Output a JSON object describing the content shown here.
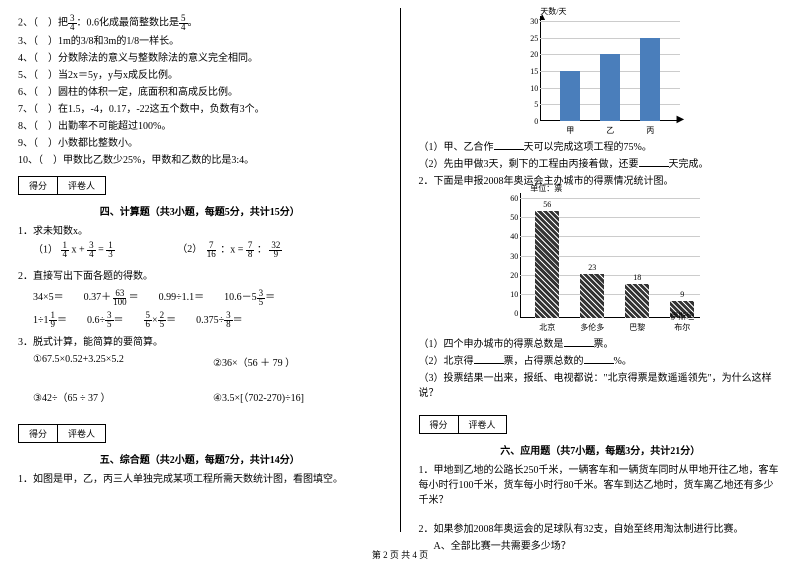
{
  "left": {
    "judge": [
      {
        "n": "2、",
        "text": "（　）把",
        "f1n": "3",
        "f1d": "4",
        "mid": "：0.6化成最简整数比是",
        "f2n": "5",
        "f2d": "4",
        "end": "。"
      },
      {
        "n": "3、",
        "text": "（　）1m的3/8和3m的1/8一样长。"
      },
      {
        "n": "4、",
        "text": "（　）分数除法的意义与整数除法的意义完全相同。"
      },
      {
        "n": "5、",
        "text": "（　）当2x＝5y，y与x成反比例。"
      },
      {
        "n": "6、",
        "text": "（　）圆柱的体积一定，底面积和高成反比例。"
      },
      {
        "n": "7、",
        "text": "（　）在1.5，-4，0.17，-22这五个数中，负数有3个。"
      },
      {
        "n": "8、",
        "text": "（　）出勤率不可能超过100%。"
      },
      {
        "n": "9、",
        "text": "（　）小数都比整数小。"
      },
      {
        "n": "10、",
        "text": "（　）甲数比乙数少25%，甲数和乙数的比是3:4。"
      }
    ],
    "scorebox": {
      "a": "得分",
      "b": "评卷人"
    },
    "sec4": {
      "title": "四、计算题（共3小题，每题5分，共计15分）",
      "q1": "1．求未知数x。"
    },
    "eq1": {
      "pre": "（1）",
      "f1n": "1",
      "f1d": "4",
      "op1": "x +",
      "f2n": "3",
      "f2d": "4",
      "op2": "=",
      "f3n": "1",
      "f3d": "3"
    },
    "eq2": {
      "pre": "（2）",
      "f1n": "7",
      "f1d": "16",
      "op1": "：x =",
      "f2n": "7",
      "f2d": "8",
      "op2": "：",
      "f3n": "32",
      "f3d": "9"
    },
    "q2": "2．直接写出下面各题的得数。",
    "row1": [
      {
        "t": "34×5＝"
      },
      {
        "pre": "0.37＋",
        "n": "63",
        "d": "100",
        "post": "＝"
      },
      {
        "t": "0.99÷1.1＝"
      },
      {
        "pre": "10.6－5",
        "n": "3",
        "d": "5",
        "post": "＝"
      }
    ],
    "row2": [
      {
        "pre": "1÷1",
        "n": "1",
        "d": "9",
        "post": "＝"
      },
      {
        "pre": "0.6÷",
        "n": "3",
        "d": "5",
        "post": "＝"
      },
      {
        "f1n": "5",
        "f1d": "6",
        "op": "×",
        "f2n": "2",
        "f2d": "5",
        "post": "＝"
      },
      {
        "pre": "0.375÷",
        "n": "3",
        "d": "8",
        "post": "＝"
      }
    ],
    "q3": "3．脱式计算，能简算的要简算。",
    "q3a": "①67.5×0.52+3.25×5.2",
    "q3b": "②36×（56 ＋ 79 ）",
    "q3c": "③42÷（65 ÷ 37 ）",
    "q3d": "④3.5×[（702-270)÷16]",
    "sec5": {
      "title": "五、综合题（共2小题，每题7分，共计14分）"
    },
    "sec5q1": "1．如图是甲，乙，丙三人单独完成某项工程所需天数统计图，看图填空。"
  },
  "right": {
    "chart1": {
      "ylabel": "天数/天",
      "ymax": 30,
      "ystep": 5,
      "bars": [
        {
          "label": "甲",
          "value": 15,
          "color": "#4A7EBB"
        },
        {
          "label": "乙",
          "value": 20,
          "color": "#4A7EBB"
        },
        {
          "label": "丙",
          "value": 25,
          "color": "#4A7EBB"
        }
      ]
    },
    "q1a": "（1）甲、乙合作",
    "q1a2": "天可以完成这项工程的75%。",
    "q1b": "（2）先由甲做3天，剩下的工程由丙接着做，还要",
    "q1b2": "天完成。",
    "q2": "2．下面是申报2008年奥运会主办城市的得票情况统计图。",
    "chart2": {
      "ylabel": "单位：票",
      "ymax": 60,
      "ystep": 10,
      "bars": [
        {
          "label": "北京",
          "value": 56
        },
        {
          "label": "多伦多",
          "value": 23
        },
        {
          "label": "巴黎",
          "value": 18
        },
        {
          "label": "伊斯坦布尔",
          "value": 9
        }
      ]
    },
    "q2a": "（1）四个申办城市的得票总数是",
    "q2a2": "票。",
    "q2b": "（2）北京得",
    "q2b2": "票，占得票总数的",
    "q2b3": "%。",
    "q2c": "（3）投票结果一出来，报纸、电视都说：\"北京得票是数遥遥领先\"，为什么这样说？",
    "scorebox": {
      "a": "得分",
      "b": "评卷人"
    },
    "sec6": {
      "title": "六、应用题（共7小题，每题3分，共计21分）"
    },
    "sec6q1": "1．甲地到乙地的公路长250千米，一辆客车和一辆货车同时从甲地开往乙地，客车每小时行100千米，货车每小时行80千米。客车到达乙地时，货车离乙地还有多少千米？",
    "sec6q2": "2．如果参加2008年奥运会的足球队有32支，自始至终用淘汰制进行比赛。",
    "sec6q2a": "A、全部比赛一共需要多少场？"
  },
  "footer": "第 2 页 共 4 页"
}
